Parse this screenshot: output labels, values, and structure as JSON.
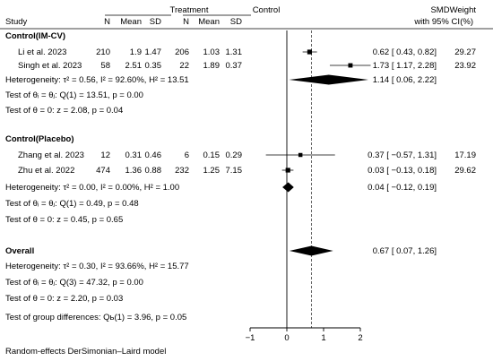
{
  "chart_data": {
    "type": "forest",
    "column_headers": {
      "treatment": "Treatment",
      "control": "Control",
      "smd_line1": "SMD",
      "smd_line2": "with 95% CI",
      "weight_line1": "Weight",
      "weight_line2": "(%)",
      "study": "Study",
      "n": "N",
      "mean": "Mean",
      "sd": "SD"
    },
    "groups": [
      {
        "label": "Control(IM-CV)",
        "studies": [
          {
            "name": "Li et al. 2023",
            "t_n": "210",
            "t_mean": "1.9",
            "t_sd": "1.47",
            "c_n": "206",
            "c_mean": "1.03",
            "c_sd": "1.31",
            "smd": 0.62,
            "lo": 0.43,
            "hi": 0.82,
            "ci_text": "0.62 [ 0.43, 0.82]",
            "weight": "29.27",
            "weight_value": 29.27
          },
          {
            "name": "Singh et al. 2023",
            "t_n": "58",
            "t_mean": "2.51",
            "t_sd": "0.35",
            "c_n": "22",
            "c_mean": "1.89",
            "c_sd": "0.37",
            "smd": 1.73,
            "lo": 1.17,
            "hi": 2.28,
            "ci_text": "1.73 [ 1.17, 2.28]",
            "weight": "23.92",
            "weight_value": 23.92
          }
        ],
        "heterogeneity": "Heterogeneity: τ² = 0.56, I² = 92.60%, H² = 13.51",
        "pooled": {
          "smd": 1.14,
          "lo": 0.06,
          "hi": 2.22,
          "ci_text": "1.14 [ 0.06, 2.22]"
        },
        "test_homogeneity": "Test of θᵢ = θⱼ: Q(1) = 13.51, p = 0.00",
        "test_zero": "Test of θ = 0: z = 2.08, p = 0.04"
      },
      {
        "label": "Control(Placebo)",
        "studies": [
          {
            "name": "Zhang et al. 2023",
            "t_n": "12",
            "t_mean": "0.31",
            "t_sd": "0.46",
            "c_n": "6",
            "c_mean": "0.15",
            "c_sd": "0.29",
            "smd": 0.37,
            "lo": -0.57,
            "hi": 1.31,
            "ci_text": "0.37 [ −0.57, 1.31]",
            "weight": "17.19",
            "weight_value": 17.19
          },
          {
            "name": "Zhu et al. 2022",
            "t_n": "474",
            "t_mean": "1.36",
            "t_sd": "0.88",
            "c_n": "232",
            "c_mean": "1.25",
            "c_sd": "7.15",
            "smd": 0.03,
            "lo": -0.13,
            "hi": 0.18,
            "ci_text": "0.03 [ −0.13, 0.18]",
            "weight": "29.62",
            "weight_value": 29.62
          }
        ],
        "heterogeneity": "Heterogeneity: τ² = 0.00, I² = 0.00%, H² = 1.00",
        "pooled": {
          "smd": 0.04,
          "lo": -0.12,
          "hi": 0.19,
          "ci_text": "0.04 [ −0.12, 0.19]"
        },
        "test_homogeneity": "Test of θᵢ = θⱼ: Q(1) = 0.49, p = 0.48",
        "test_zero": "Test of θ = 0: z = 0.45, p = 0.65"
      }
    ],
    "overall": {
      "label": "Overall",
      "smd": 0.67,
      "lo": 0.07,
      "hi": 1.26,
      "ci_text": "0.67 [ 0.07, 1.26]",
      "heterogeneity": "Heterogeneity: τ² = 0.30, I² = 93.66%, H² = 15.77",
      "test_homogeneity": "Test of θᵢ = θⱼ: Q(3) = 47.32, p = 0.00",
      "test_zero": "Test of θ = 0: z = 2.20, p = 0.03"
    },
    "group_difference_test": "Test of group differences: Qь(1) = 3.96, p = 0.05",
    "footnote": "Random-effects DerSimonian–Laird model",
    "x_axis": {
      "ticks": [
        -1,
        0,
        1,
        2
      ],
      "tick_labels": [
        "−1",
        "0",
        "1",
        "2"
      ],
      "range": [
        -1,
        2
      ]
    },
    "reference_line_no_effect": 0,
    "reference_line_overall": 0.67,
    "colors": {
      "text": "#000000",
      "markers": "#000000",
      "ci_line": "#000000",
      "reference_line": "#555555"
    }
  }
}
